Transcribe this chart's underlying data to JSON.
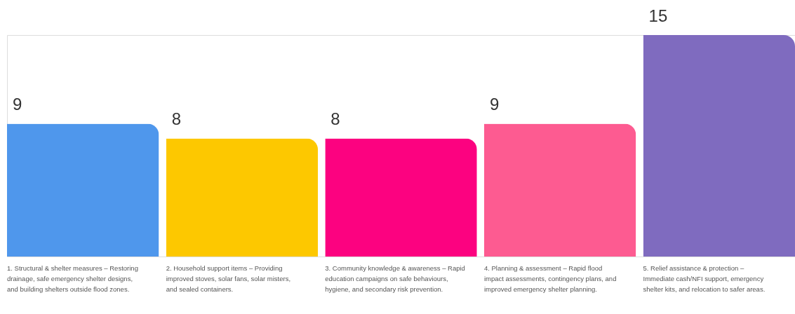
{
  "chart_data": {
    "type": "bar",
    "categories": [
      "1. Structural & shelter measures – Restoring drainage, safe emergency shelter designs, and building shelters outside flood zones.",
      "2. Household support items – Providing improved stoves, solar fans, solar misters, and sealed containers.",
      "3. Community knowledge & awareness – Rapid education campaigns on safe behaviours, hygiene, and secondary risk prevention.",
      "4. Planning & assessment – Rapid flood impact assessments, contingency plans, and improved emergency shelter planning.",
      "5. Relief assistance & protection – Immediate cash/NFI support, emergency shelter kits, and relocation to safer areas."
    ],
    "values": [
      9,
      8,
      8,
      9,
      15
    ],
    "colors": [
      "#4f97ec",
      "#fdc800",
      "#fc0280",
      "#fd5b91",
      "#7f6bbf"
    ],
    "data_labels": true,
    "grid": false
  }
}
